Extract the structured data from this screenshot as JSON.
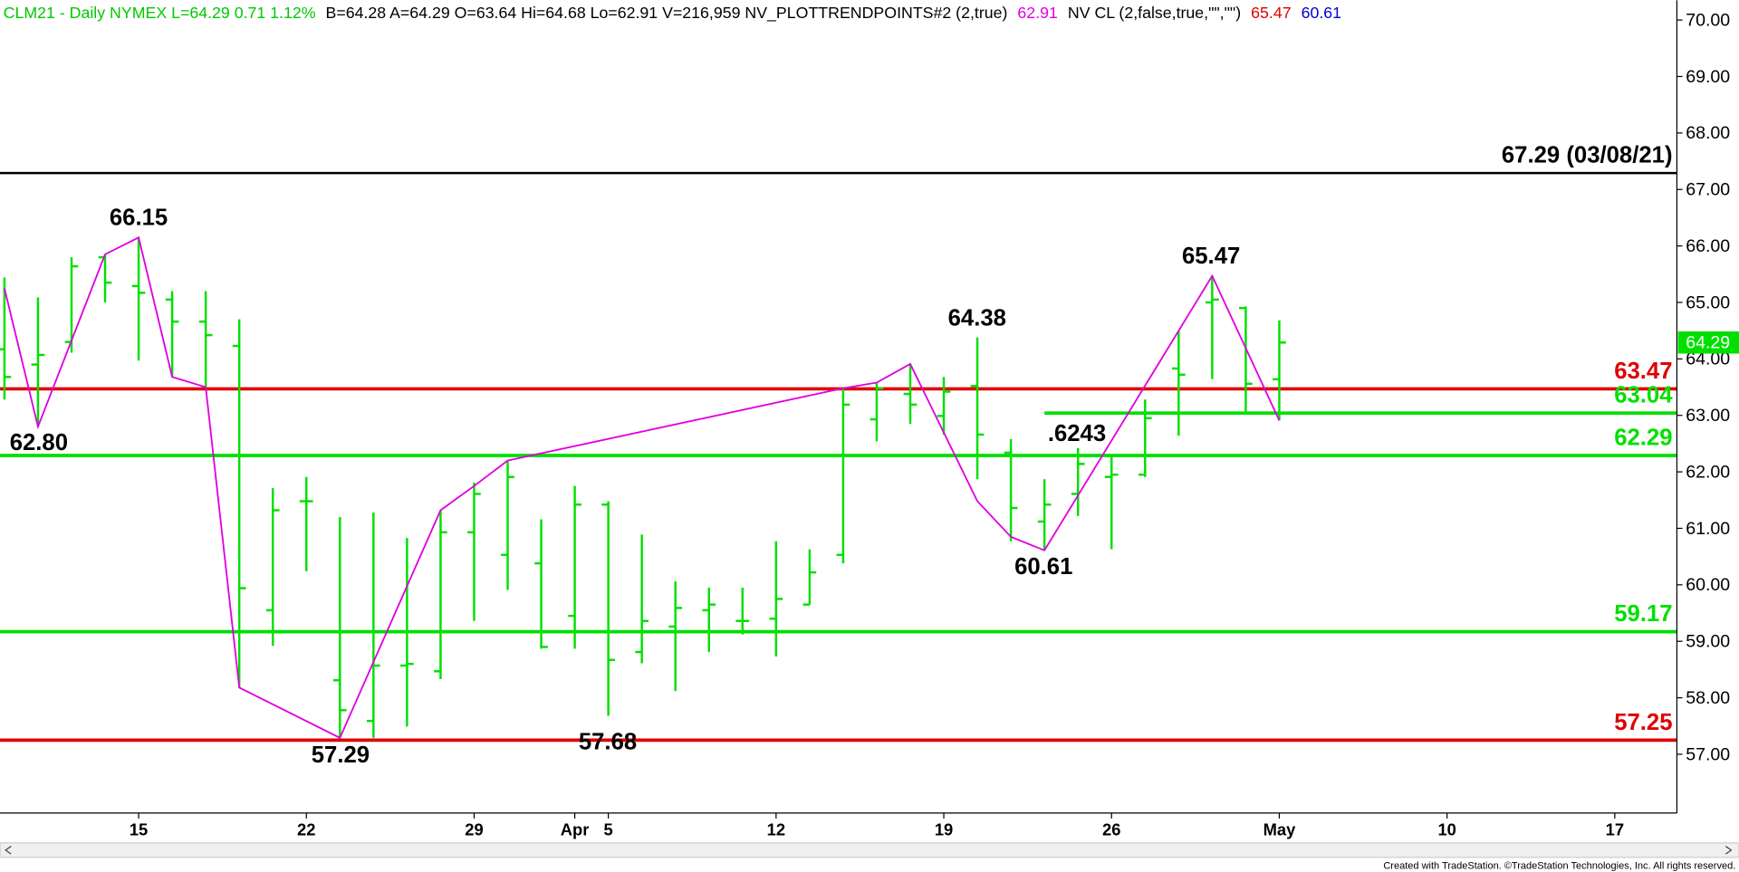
{
  "chart_data": {
    "type": "ohlc",
    "header": [
      {
        "text": "CLM21 - Daily  NYMEX  L=64.29  0.71  1.12%",
        "color": "#00c800"
      },
      {
        "text": "B=64.28  A=64.29  O=63.64  Hi=64.68  Lo=62.91  V=216,959  NV_PLOTTRENDPOINTS#2 (2,true)",
        "color": "#000000"
      },
      {
        "text": "62.91",
        "color": "#e000e0"
      },
      {
        "text": "NV CL (2,false,true,\"\",\"\")",
        "color": "#000000"
      },
      {
        "text": "65.47",
        "color": "#e00000"
      },
      {
        "text": "60.61",
        "color": "#0000d0"
      }
    ],
    "categories": [
      null,
      null,
      null,
      null,
      "15",
      null,
      null,
      null,
      null,
      "22",
      null,
      null,
      null,
      null,
      "29",
      null,
      null,
      "Apr",
      "5",
      null,
      null,
      null,
      null,
      "12",
      null,
      null,
      null,
      null,
      "19",
      null,
      null,
      null,
      null,
      "26",
      null,
      null,
      null,
      null,
      "May",
      null,
      null,
      null,
      null,
      "10",
      null,
      null,
      null,
      null,
      "17",
      null
    ],
    "open": [
      64.17,
      63.9,
      64.3,
      65.8,
      65.29,
      65.05,
      64.66,
      64.23,
      59.55,
      61.48,
      58.31,
      57.59,
      58.57,
      58.47,
      60.93,
      60.53,
      60.38,
      59.45,
      61.42,
      58.81,
      59.26,
      59.55,
      59.36,
      59.4,
      59.65,
      60.53,
      62.93,
      63.38,
      62.99,
      63.52,
      62.34,
      61.12,
      61.61,
      61.91,
      61.95,
      63.83,
      65.0,
      64.9,
      63.64,
      null,
      null,
      null,
      null,
      null,
      null,
      null,
      null,
      null,
      null,
      null
    ],
    "high": [
      65.44,
      65.09,
      65.8,
      65.84,
      66.15,
      65.2,
      65.2,
      64.7,
      61.71,
      61.91,
      61.2,
      61.28,
      60.83,
      61.32,
      61.81,
      62.2,
      61.16,
      61.75,
      61.48,
      60.89,
      60.06,
      59.95,
      59.95,
      60.77,
      60.63,
      63.48,
      63.58,
      63.91,
      63.68,
      64.38,
      62.58,
      61.87,
      62.42,
      62.3,
      63.28,
      64.5,
      65.47,
      64.93,
      64.68,
      null,
      null,
      null,
      null,
      null,
      null,
      null,
      null,
      null,
      null,
      null
    ],
    "low": [
      63.28,
      62.8,
      64.11,
      65.0,
      63.97,
      63.68,
      63.5,
      58.18,
      58.92,
      60.24,
      57.29,
      57.29,
      57.49,
      58.33,
      59.36,
      59.91,
      58.87,
      58.87,
      57.68,
      58.61,
      58.12,
      58.81,
      59.12,
      58.73,
      59.65,
      60.38,
      62.54,
      62.85,
      62.66,
      61.87,
      60.77,
      60.61,
      61.22,
      60.63,
      61.91,
      62.64,
      63.64,
      63.04,
      62.91,
      null,
      null,
      null,
      null,
      null,
      null,
      null,
      null,
      null,
      null,
      null
    ],
    "close": [
      63.68,
      64.07,
      65.64,
      65.35,
      65.17,
      64.66,
      64.42,
      59.94,
      61.32,
      61.48,
      57.78,
      58.57,
      58.6,
      60.93,
      61.61,
      61.91,
      58.9,
      61.42,
      58.67,
      59.36,
      59.59,
      59.65,
      59.36,
      59.75,
      60.22,
      63.19,
      63.48,
      63.19,
      63.42,
      62.66,
      61.36,
      61.42,
      62.14,
      61.95,
      62.95,
      63.72,
      65.05,
      63.56,
      64.29,
      null,
      null,
      null,
      null,
      null,
      null,
      null,
      null,
      null,
      null,
      null
    ],
    "color": "#00e000",
    "trend": {
      "color": "#e000e0",
      "x": [
        0,
        1,
        3,
        4,
        5,
        6,
        7,
        10,
        13,
        14,
        15,
        25,
        26,
        27,
        29,
        30,
        31,
        36,
        38
      ],
      "values": [
        65.25,
        62.8,
        65.85,
        66.15,
        63.68,
        63.5,
        58.18,
        57.29,
        61.32,
        61.75,
        62.2,
        63.48,
        63.58,
        63.91,
        61.48,
        60.85,
        60.61,
        65.47,
        62.91
      ]
    },
    "levels": [
      {
        "value": 67.29,
        "label": "67.29 (03/08/21)",
        "color": "#000000"
      },
      {
        "value": 63.47,
        "label": "63.47",
        "color": "#e00000"
      },
      {
        "value": 63.04,
        "label": "63.04",
        "color": "#00e000"
      },
      {
        "value": 62.29,
        "label": "62.29",
        "color": "#00e000"
      },
      {
        "value": 59.17,
        "label": "59.17",
        "color": "#00e000"
      },
      {
        "value": 57.25,
        "label": "57.25",
        "color": "#e00000"
      }
    ],
    "annotations": [
      "66.15",
      "62.80",
      "57.29",
      "57.68",
      "64.38",
      ".6243",
      "60.61",
      "65.47"
    ],
    "last": {
      "value": 64.29,
      "label": "64.29",
      "color": "#00e000"
    },
    "ylim": [
      55.96,
      70.35
    ],
    "yticks": [
      {
        "value": 57,
        "label": "57.00"
      },
      {
        "value": 58,
        "label": "58.00"
      },
      {
        "value": 59,
        "label": "59.00"
      },
      {
        "value": 60,
        "label": "60.00"
      },
      {
        "value": 61,
        "label": "61.00"
      },
      {
        "value": 62,
        "label": "62.00"
      },
      {
        "value": 63,
        "label": "63.00"
      },
      {
        "value": 64,
        "label": "64.00"
      },
      {
        "value": 65,
        "label": "65.00"
      },
      {
        "value": 66,
        "label": "66.00"
      },
      {
        "value": 67,
        "label": "67.00"
      },
      {
        "value": 68,
        "label": "68.00"
      },
      {
        "value": 69,
        "label": "69.00"
      },
      {
        "value": 70,
        "label": "70.00"
      }
    ],
    "footer": "Created with TradeStation. ©TradeStation Technologies, Inc. All rights reserved."
  }
}
